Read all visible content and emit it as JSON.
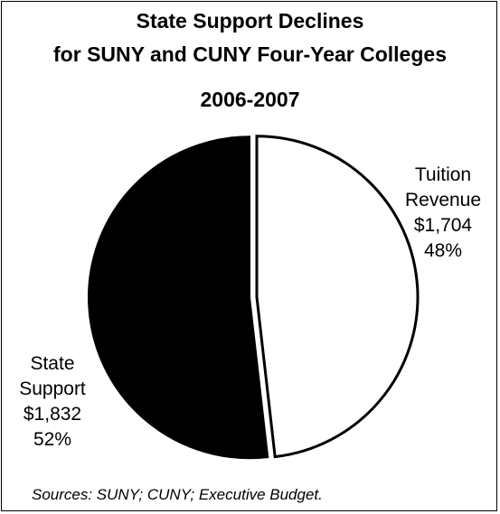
{
  "chart_data": {
    "type": "pie",
    "title_line1": "State Support Declines",
    "title_line2": "for SUNY and CUNY Four-Year Colleges",
    "subtitle": "2006-2007",
    "slices": [
      {
        "key": "tuition",
        "label_line1": "Tuition",
        "label_line2": "Revenue",
        "amount": "$1,704",
        "percent": "48%",
        "value": 1704,
        "color": "#ffffff"
      },
      {
        "key": "state",
        "label_line1": "State",
        "label_line2": "Support",
        "amount": "$1,832",
        "percent": "52%",
        "value": 1832,
        "color": "#000000"
      }
    ],
    "source": "Sources: SUNY; CUNY; Executive Budget."
  }
}
